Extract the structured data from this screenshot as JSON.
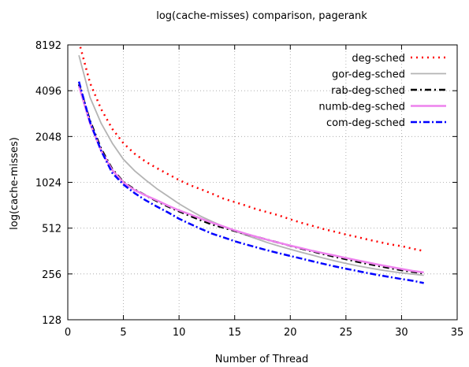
{
  "chart_data": {
    "type": "line",
    "title": "log(cache-misses) comparison, pagerank",
    "xlabel": "Number of Thread",
    "ylabel": "log(cache-misses)",
    "xlim": [
      0,
      35
    ],
    "ylim": [
      128,
      8192
    ],
    "y_scale": "log2",
    "x_ticks": [
      0,
      5,
      10,
      15,
      20,
      25,
      30,
      35
    ],
    "y_ticks": [
      128,
      256,
      512,
      1024,
      2048,
      4096,
      8192
    ],
    "x_tick_labels": [
      "0",
      "5",
      "10",
      "15",
      "20",
      "25",
      "30",
      "35"
    ],
    "y_tick_labels": [
      "128",
      "256",
      "512",
      "1024",
      "2048",
      "4096",
      "8192"
    ],
    "grid": true,
    "legend_position": "top-right",
    "x": [
      1,
      2,
      3,
      4,
      5,
      6,
      7,
      8,
      9,
      10,
      11,
      12,
      13,
      14,
      15,
      16,
      17,
      18,
      19,
      20,
      21,
      22,
      23,
      24,
      25,
      26,
      27,
      28,
      29,
      30,
      31,
      32
    ],
    "series": [
      {
        "name": "deg-sched",
        "color": "#ff0000",
        "dash": "2,5",
        "width": 2.5,
        "values": [
          8600,
          4600,
          3100,
          2300,
          1850,
          1580,
          1400,
          1270,
          1160,
          1060,
          980,
          920,
          860,
          800,
          760,
          720,
          680,
          650,
          620,
          585,
          555,
          530,
          505,
          485,
          465,
          448,
          430,
          415,
          400,
          390,
          375,
          362
        ]
      },
      {
        "name": "gor-deg-sched",
        "color": "#b4b4b4",
        "dash": "",
        "width": 1.8,
        "values": [
          7000,
          3700,
          2500,
          1850,
          1450,
          1220,
          1060,
          930,
          830,
          740,
          670,
          610,
          565,
          525,
          490,
          460,
          435,
          410,
          390,
          372,
          355,
          340,
          325,
          312,
          300,
          290,
          281,
          273,
          266,
          260,
          255,
          251
        ]
      },
      {
        "name": "rab-deg-sched",
        "color": "#000000",
        "dash": "8,4,2,4",
        "width": 2.5,
        "values": [
          4500,
          2600,
          1700,
          1250,
          1030,
          920,
          840,
          770,
          710,
          660,
          615,
          575,
          540,
          515,
          490,
          468,
          448,
          428,
          410,
          392,
          375,
          360,
          345,
          332,
          320,
          308,
          298,
          288,
          279,
          271,
          264,
          258
        ]
      },
      {
        "name": "numb-deg-sched",
        "color": "#ee82ee",
        "dash": "",
        "width": 2.5,
        "values": [
          4400,
          2500,
          1650,
          1230,
          1020,
          910,
          840,
          780,
          720,
          670,
          630,
          590,
          555,
          525,
          495,
          470,
          448,
          428,
          410,
          393,
          378,
          363,
          350,
          338,
          326,
          315,
          304,
          294,
          285,
          276,
          268,
          262
        ]
      },
      {
        "name": "com-deg-sched",
        "color": "#0000ff",
        "dash": "8,3,2,3",
        "width": 2.5,
        "values": [
          4700,
          2550,
          1650,
          1180,
          990,
          870,
          780,
          710,
          650,
          590,
          545,
          505,
          470,
          445,
          420,
          400,
          382,
          365,
          350,
          336,
          323,
          310,
          298,
          287,
          277,
          268,
          259,
          251,
          244,
          237,
          231,
          223
        ]
      }
    ]
  }
}
